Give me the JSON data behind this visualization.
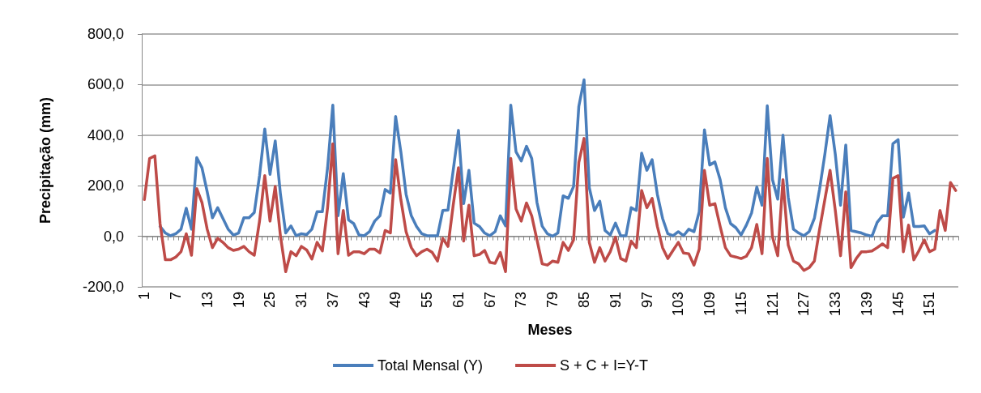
{
  "chart_data": {
    "type": "line",
    "xlabel": "Meses",
    "ylabel": "Precipitação (mm)",
    "categories": [
      "1",
      null,
      null,
      null,
      null,
      null,
      "7",
      null,
      null,
      null,
      null,
      null,
      "13",
      null,
      null,
      null,
      null,
      null,
      "19",
      null,
      null,
      null,
      null,
      null,
      "25",
      null,
      null,
      null,
      null,
      null,
      "31",
      null,
      null,
      null,
      null,
      null,
      "37",
      null,
      null,
      null,
      null,
      null,
      "43",
      null,
      null,
      null,
      null,
      null,
      "49",
      null,
      null,
      null,
      null,
      null,
      "55",
      null,
      null,
      null,
      null,
      null,
      "61",
      null,
      null,
      null,
      null,
      null,
      "67",
      null,
      null,
      null,
      null,
      null,
      "73",
      null,
      null,
      null,
      null,
      null,
      "79",
      null,
      null,
      null,
      null,
      null,
      "85",
      null,
      null,
      null,
      null,
      null,
      "91",
      null,
      null,
      null,
      null,
      null,
      "97",
      null,
      null,
      null,
      null,
      null,
      "103",
      null,
      null,
      null,
      null,
      null,
      "109",
      null,
      null,
      null,
      null,
      null,
      "115",
      null,
      null,
      null,
      null,
      null,
      "121",
      null,
      null,
      null,
      null,
      null,
      "127",
      null,
      null,
      null,
      null,
      null,
      "133",
      null,
      null,
      null,
      null,
      null,
      "139",
      null,
      null,
      null,
      null,
      null,
      "145",
      null,
      null,
      null,
      null,
      null,
      "151",
      null,
      null,
      null,
      null,
      null
    ],
    "series": [
      {
        "name": "Total Mensal (Y)",
        "color": "#4a7ebb",
        "values": [
          null,
          null,
          null,
          39,
          13,
          2,
          10,
          28,
          111,
          28,
          311,
          271,
          176,
          73,
          113,
          71,
          28,
          5,
          13,
          73,
          73,
          94,
          240,
          424,
          245,
          377,
          166,
          13,
          41,
          2,
          10,
          7,
          28,
          97,
          97,
          271,
          519,
          81,
          248,
          65,
          50,
          5,
          2,
          18,
          60,
          81,
          185,
          171,
          474,
          334,
          166,
          81,
          39,
          10,
          2,
          2,
          2,
          102,
          104,
          261,
          419,
          129,
          261,
          52,
          39,
          13,
          2,
          18,
          81,
          41,
          519,
          334,
          298,
          356,
          308,
          134,
          40,
          10,
          0,
          13,
          160,
          150,
          197,
          514,
          619,
          192,
          102,
          139,
          23,
          5,
          52,
          2,
          2,
          113,
          102,
          329,
          261,
          303,
          166,
          71,
          10,
          2,
          18,
          2,
          28,
          18,
          97,
          421,
          282,
          294,
          224,
          113,
          50,
          34,
          5,
          44,
          92,
          195,
          123,
          516,
          224,
          147,
          400,
          155,
          28,
          13,
          2,
          18,
          71,
          187,
          324,
          477,
          324,
          123,
          361,
          23,
          18,
          13,
          5,
          0,
          55,
          81,
          81,
          366,
          382,
          76,
          171,
          39,
          39,
          41,
          10,
          23,
          null,
          null,
          null,
          null
        ]
      },
      {
        "name": "S + C + I=Y-T",
        "color": "#be4b48",
        "values": [
          145,
          308,
          318,
          50,
          -93,
          -93,
          -82,
          -61,
          10,
          -75,
          189,
          134,
          28,
          -45,
          -8,
          -24,
          -45,
          -56,
          -51,
          -40,
          -61,
          -75,
          60,
          240,
          60,
          197,
          0,
          -140,
          -61,
          -77,
          -40,
          -54,
          -90,
          -24,
          -58,
          113,
          366,
          -69,
          102,
          -75,
          -61,
          -61,
          -69,
          -51,
          -51,
          -66,
          23,
          13,
          303,
          145,
          18,
          -45,
          -77,
          -61,
          -51,
          -64,
          -98,
          -8,
          -40,
          123,
          271,
          -19,
          123,
          -77,
          -72,
          -56,
          -103,
          -107,
          -64,
          -140,
          308,
          108,
          60,
          132,
          81,
          -14,
          -109,
          -114,
          -98,
          -103,
          -24,
          -56,
          -14,
          292,
          387,
          -24,
          -103,
          -45,
          -98,
          -61,
          -3,
          -88,
          -98,
          -19,
          -45,
          181,
          113,
          150,
          39,
          -45,
          -88,
          -56,
          -24,
          -66,
          -69,
          -114,
          -51,
          261,
          123,
          129,
          39,
          -45,
          -77,
          -82,
          -88,
          -79,
          -45,
          47,
          -69,
          308,
          -3,
          -77,
          224,
          -35,
          -98,
          -109,
          -135,
          -124,
          -98,
          28,
          145,
          261,
          102,
          -77,
          176,
          -124,
          -88,
          -61,
          -61,
          -58,
          -45,
          -30,
          -45,
          229,
          240,
          -61,
          44,
          -93,
          -56,
          -14,
          -61,
          -51,
          102,
          23,
          213,
          181
        ]
      }
    ],
    "ylim": [
      -200,
      800
    ],
    "yticks": [
      {
        "value": -200,
        "label": "-200,0"
      },
      {
        "value": 0,
        "label": "0,0"
      },
      {
        "value": 200,
        "label": "200,0"
      },
      {
        "value": 400,
        "label": "400,0"
      },
      {
        "value": 600,
        "label": "600,0"
      },
      {
        "value": 800,
        "label": "800,0"
      }
    ],
    "grid": "y",
    "legend": "bottom",
    "marker": "none",
    "line_style": "solid"
  }
}
